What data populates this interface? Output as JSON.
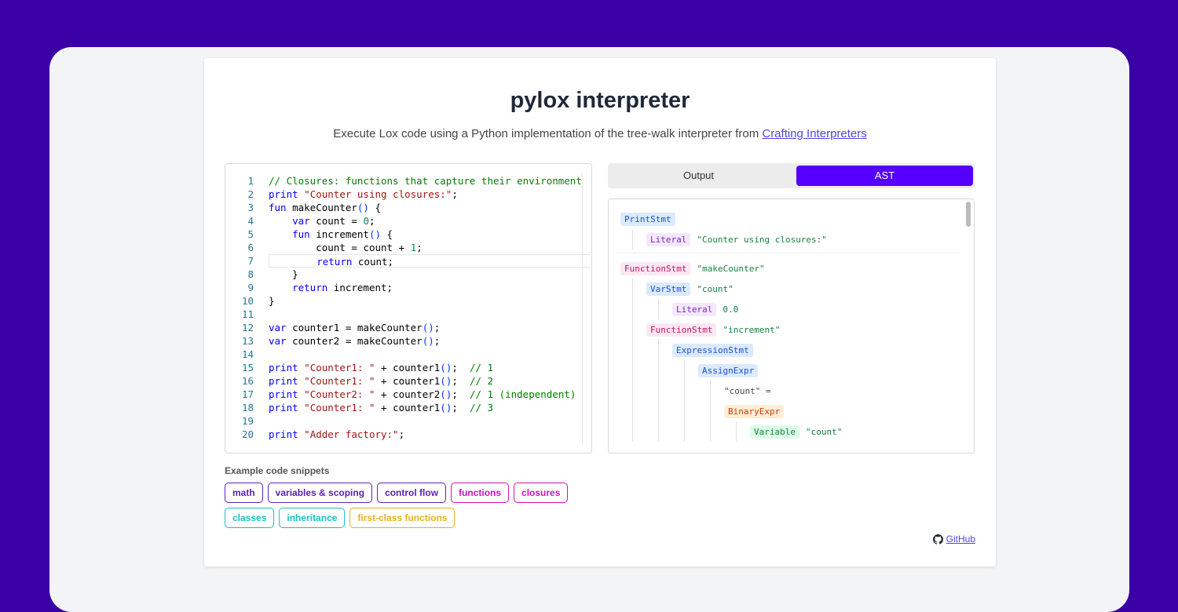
{
  "header": {
    "title": "pylox interpreter",
    "subtitle": "Execute Lox code using a Python implementation of the tree-walk interpreter from",
    "link": "Crafting Interpreters"
  },
  "editor": {
    "line_numbers": [
      1,
      2,
      3,
      4,
      5,
      6,
      7,
      8,
      9,
      10,
      11,
      12,
      13,
      14,
      15,
      16,
      17,
      18,
      19,
      20
    ],
    "lines": [
      "// Closures: functions that capture their environment",
      "print \"Counter using closures:\";",
      "fun makeCounter() {",
      "    var count = 0;",
      "    fun increment() {",
      "        count = count + 1;",
      "        return count;",
      "    }",
      "    return increment;",
      "}",
      null,
      "var counter1 = makeCounter();",
      "var counter2 = makeCounter();",
      null,
      "print \"Counter1: \" + counter1();  // 1",
      "print \"Counter1: \" + counter1();  // 2",
      "print \"Counter2: \" + counter2();  // 1 (independent)",
      "print \"Counter1: \" + counter1();  // 3",
      null,
      "print \"Adder factory:\";"
    ],
    "active_line": 7
  },
  "tabs": [
    "Output",
    "AST"
  ],
  "active_tab": 1,
  "ast": [
    {
      "type": "PrintStmt",
      "children": [
        {
          "type": "Literal",
          "value": "\"Counter using closures:\""
        }
      ]
    },
    {
      "type": "FunctionStmt",
      "value": "\"makeCounter\"",
      "children": [
        {
          "type": "VarStmt",
          "value": "\"count\"",
          "children": [
            {
              "type": "Literal",
              "value": "0.0"
            }
          ]
        },
        {
          "type": "FunctionStmt",
          "value": "\"increment\"",
          "children": [
            {
              "type": "ExpressionStmt",
              "children": [
                {
                  "type": "AssignExpr",
                  "target": "\"count\" =",
                  "children": [
                    {
                      "type": "BinaryExpr",
                      "children": [
                        {
                          "type": "Variable",
                          "value": "\"count\""
                        }
                      ]
                    }
                  ]
                }
              ]
            }
          ]
        }
      ]
    }
  ],
  "snippets": {
    "title": "Example code snippets",
    "buttons": [
      {
        "label": "math",
        "color": "#5b21b6"
      },
      {
        "label": "variables & scoping",
        "color": "#5b21b6"
      },
      {
        "label": "control flow",
        "color": "#5b21b6"
      },
      {
        "label": "functions",
        "color": "#d411b8"
      },
      {
        "label": "closures",
        "color": "#d411b8"
      },
      {
        "label": "classes",
        "color": "#19c2c2"
      },
      {
        "label": "inheritance",
        "color": "#19c2c2"
      },
      {
        "label": "first-class functions",
        "color": "#e8b11a"
      }
    ]
  },
  "footer": {
    "link": "GitHub"
  }
}
